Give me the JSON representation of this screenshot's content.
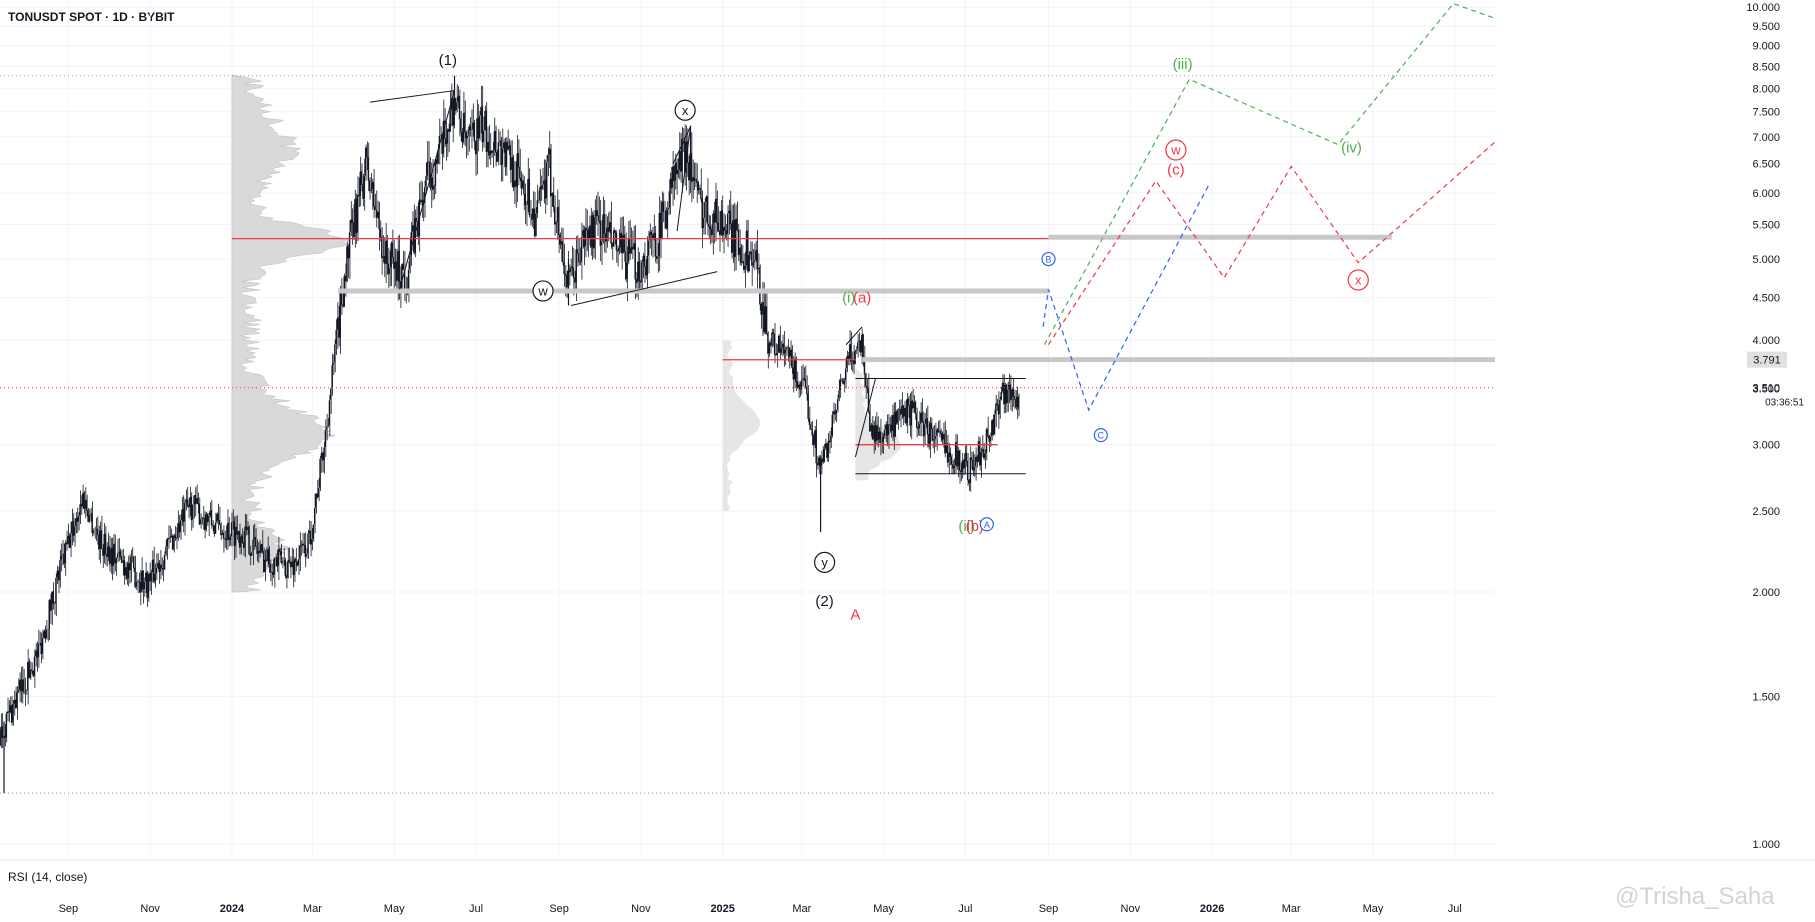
{
  "header": {
    "title": "TONUSDT SPOT · 1D · BYBIT"
  },
  "indicator": {
    "label": "RSI (14, close)"
  },
  "watermark": "@Trisha_Saha",
  "colors": {
    "black": "#131722",
    "red": "#f23645",
    "green": "#4caf50",
    "blue": "#2962ff",
    "zone": "#c8c8c8",
    "profile": "#d9d9d9"
  },
  "chart_data": {
    "type": "candlestick",
    "y_scale": "log",
    "ylim": [
      0.97,
      10.2
    ],
    "xlim": [
      "2023-07-12",
      "2026-07-31"
    ],
    "y_ticks": [
      "1.000",
      "1.500",
      "2.000",
      "2.500",
      "3.000",
      "3.500",
      "4.000",
      "4.500",
      "5.000",
      "5.500",
      "6.000",
      "6.500",
      "7.000",
      "7.500",
      "8.000",
      "8.500",
      "9.000",
      "9.500",
      "10.000"
    ],
    "x_ticks": [
      {
        "label": "Sep",
        "date": "2023-09-01",
        "bold": false
      },
      {
        "label": "Nov",
        "date": "2023-11-01",
        "bold": false
      },
      {
        "label": "2024",
        "date": "2024-01-01",
        "bold": true
      },
      {
        "label": "Mar",
        "date": "2024-03-01",
        "bold": false
      },
      {
        "label": "May",
        "date": "2024-05-01",
        "bold": false
      },
      {
        "label": "Jul",
        "date": "2024-07-01",
        "bold": false
      },
      {
        "label": "Sep",
        "date": "2024-09-01",
        "bold": false
      },
      {
        "label": "Nov",
        "date": "2024-11-01",
        "bold": false
      },
      {
        "label": "2025",
        "date": "2025-01-01",
        "bold": true
      },
      {
        "label": "Mar",
        "date": "2025-03-01",
        "bold": false
      },
      {
        "label": "May",
        "date": "2025-05-01",
        "bold": false
      },
      {
        "label": "Jul",
        "date": "2025-07-01",
        "bold": false
      },
      {
        "label": "Sep",
        "date": "2025-09-01",
        "bold": false
      },
      {
        "label": "Nov",
        "date": "2025-11-01",
        "bold": false
      },
      {
        "label": "2026",
        "date": "2026-01-01",
        "bold": true
      },
      {
        "label": "Mar",
        "date": "2026-03-01",
        "bold": false
      },
      {
        "label": "May",
        "date": "2026-05-01",
        "bold": false
      },
      {
        "label": "Jul",
        "date": "2026-07-01",
        "bold": false
      }
    ],
    "price_path": [
      [
        "2023-07-12",
        1.35
      ],
      [
        "2023-08-10",
        1.7
      ],
      [
        "2023-08-25",
        2.1
      ],
      [
        "2023-09-12",
        2.6
      ],
      [
        "2023-09-25",
        2.3
      ],
      [
        "2023-10-15",
        2.15
      ],
      [
        "2023-10-30",
        2.05
      ],
      [
        "2023-11-20",
        2.35
      ],
      [
        "2023-12-01",
        2.55
      ],
      [
        "2023-12-20",
        2.4
      ],
      [
        "2024-01-10",
        2.35
      ],
      [
        "2024-01-25",
        2.2
      ],
      [
        "2024-02-15",
        2.15
      ],
      [
        "2024-02-28",
        2.3
      ],
      [
        "2024-03-10",
        3.0
      ],
      [
        "2024-03-25",
        4.8
      ],
      [
        "2024-04-10",
        6.5
      ],
      [
        "2024-04-25",
        5.0
      ],
      [
        "2024-05-10",
        4.8
      ],
      [
        "2024-05-25",
        6.2
      ],
      [
        "2024-06-05",
        6.7
      ],
      [
        "2024-06-15",
        7.8
      ],
      [
        "2024-06-25",
        6.8
      ],
      [
        "2024-07-05",
        7.2
      ],
      [
        "2024-07-20",
        6.8
      ],
      [
        "2024-08-05",
        6.2
      ],
      [
        "2024-08-15",
        5.6
      ],
      [
        "2024-08-25",
        6.4
      ],
      [
        "2024-09-08",
        4.6
      ],
      [
        "2024-09-20",
        5.3
      ],
      [
        "2024-10-01",
        5.5
      ],
      [
        "2024-10-15",
        5.1
      ],
      [
        "2024-11-01",
        4.9
      ],
      [
        "2024-11-15",
        5.4
      ],
      [
        "2024-11-25",
        6.2
      ],
      [
        "2024-12-05",
        6.8
      ],
      [
        "2024-12-15",
        5.8
      ],
      [
        "2024-12-30",
        5.6
      ],
      [
        "2025-01-10",
        5.3
      ],
      [
        "2025-01-25",
        5.0
      ],
      [
        "2025-02-05",
        4.0
      ],
      [
        "2025-02-20",
        3.8
      ],
      [
        "2025-03-05",
        3.4
      ],
      [
        "2025-03-15",
        2.8
      ],
      [
        "2025-03-25",
        3.2
      ],
      [
        "2025-04-05",
        3.8
      ],
      [
        "2025-04-15",
        4.0
      ],
      [
        "2025-04-22",
        3.1
      ],
      [
        "2025-05-05",
        3.1
      ],
      [
        "2025-05-20",
        3.3
      ],
      [
        "2025-06-05",
        3.1
      ],
      [
        "2025-06-20",
        2.95
      ],
      [
        "2025-07-05",
        2.8
      ],
      [
        "2025-07-20",
        3.1
      ],
      [
        "2025-07-28",
        3.5
      ],
      [
        "2025-08-10",
        3.4
      ]
    ],
    "range_extremes": [
      [
        "2024-06-15",
        8.28,
        7.6
      ],
      [
        "2024-12-08",
        7.22,
        6.6
      ],
      [
        "2024-09-08",
        5.0,
        4.4
      ],
      [
        "2025-03-15",
        2.9,
        2.36
      ],
      [
        "2023-07-15",
        1.4,
        1.15
      ]
    ],
    "horizontal_lines": [
      {
        "from": "2024-01-01",
        "to": "2025-09-01",
        "price": 5.29,
        "color": "red"
      },
      {
        "from": "2024-03-20",
        "to": "2025-09-01",
        "price": 4.58,
        "color": "zone"
      },
      {
        "from": "2025-09-01",
        "to": "2026-05-15",
        "price": 5.31,
        "color": "zone"
      },
      {
        "from": "2025-04-15",
        "to": "2026-08-31",
        "price": 3.791,
        "color": "zone"
      },
      {
        "from": "2025-04-10",
        "to": "2025-08-15",
        "price": 3.6,
        "color": "black"
      },
      {
        "from": "2025-04-10",
        "to": "2025-08-15",
        "price": 2.77,
        "color": "black"
      },
      {
        "from": "2025-01-01",
        "to": "2025-04-10",
        "price": 3.79,
        "color": "red"
      },
      {
        "from": "2025-04-10",
        "to": "2025-07-25",
        "price": 3.0,
        "color": "red"
      }
    ],
    "dotted_levels": [
      8.28,
      3.51,
      1.15
    ],
    "trendlines": [
      [
        "2024-04-13",
        7.7,
        "2024-06-15",
        7.95
      ],
      [
        "2024-05-05",
        4.6,
        "2024-06-15",
        7.95
      ],
      [
        "2024-09-10",
        4.4,
        "2024-12-28",
        4.83
      ],
      [
        "2024-11-25",
        6.5,
        "2024-12-08",
        7.2
      ],
      [
        "2024-11-28",
        5.4,
        "2024-12-08",
        7.2
      ],
      [
        "2025-04-03",
        3.95,
        "2025-04-15",
        4.15
      ],
      [
        "2025-04-25",
        3.6,
        "2025-04-10",
        2.9
      ]
    ],
    "value_labels": {
      "last": "3.791",
      "countdown": "03:36:51",
      "price_3_510": "3.510"
    },
    "projections": [
      {
        "color": "green",
        "points": [
          [
            "2025-08-29",
            3.95
          ],
          [
            "2025-12-15",
            8.2
          ],
          [
            "2026-04-05",
            6.85
          ],
          [
            "2026-06-30",
            10.1
          ],
          [
            "2026-07-31",
            9.7
          ]
        ]
      },
      {
        "color": "red",
        "points": [
          [
            "2025-09-01",
            3.95
          ],
          [
            "2025-11-20",
            6.2
          ],
          [
            "2026-01-10",
            4.75
          ],
          [
            "2026-03-01",
            6.45
          ],
          [
            "2026-04-20",
            4.95
          ],
          [
            "2026-07-31",
            6.9
          ]
        ]
      },
      {
        "color": "blue",
        "points": [
          [
            "2025-08-28",
            4.15
          ],
          [
            "2025-09-01",
            4.6
          ],
          [
            "2025-10-01",
            3.3
          ],
          [
            "2025-12-30",
            6.15
          ]
        ]
      }
    ],
    "wave_labels": [
      {
        "text": "(1)",
        "date": "2024-06-10",
        "price": 8.65,
        "color": "black",
        "circled": false
      },
      {
        "text": "(2)",
        "date": "2025-03-18",
        "price": 1.95,
        "color": "black",
        "circled": false
      },
      {
        "text": "w",
        "date": "2024-08-20",
        "price": 4.58,
        "color": "black",
        "circled": true
      },
      {
        "text": "x",
        "date": "2024-12-04",
        "price": 7.53,
        "color": "black",
        "circled": true
      },
      {
        "text": "y",
        "date": "2025-03-18",
        "price": 2.17,
        "color": "black",
        "circled": true
      },
      {
        "text": "(i)",
        "date": "2025-04-05",
        "price": 4.5,
        "color": "green",
        "circled": false
      },
      {
        "text": "(a)",
        "date": "2025-04-15",
        "price": 4.5,
        "color": "red",
        "circled": false
      },
      {
        "text": "A",
        "date": "2025-04-10",
        "price": 1.88,
        "color": "red",
        "circled": false
      },
      {
        "text": "(ii)",
        "date": "2025-07-02",
        "price": 2.4,
        "color": "green",
        "circled": false
      },
      {
        "text": "(b)",
        "date": "2025-07-08",
        "price": 2.4,
        "color": "red",
        "circled": false
      },
      {
        "text": "A",
        "date": "2025-07-17",
        "price": 2.41,
        "color": "blue",
        "circled": true
      },
      {
        "text": "B",
        "date": "2025-09-01",
        "price": 5.0,
        "color": "blue",
        "circled": true
      },
      {
        "text": "C",
        "date": "2025-10-10",
        "price": 3.08,
        "color": "blue",
        "circled": true
      },
      {
        "text": "(iii)",
        "date": "2025-12-10",
        "price": 8.55,
        "color": "green",
        "circled": false
      },
      {
        "text": "(iv)",
        "date": "2026-04-15",
        "price": 6.8,
        "color": "green",
        "circled": false
      },
      {
        "text": "w",
        "date": "2025-12-05",
        "price": 6.75,
        "color": "red",
        "circled": true
      },
      {
        "text": "(c)",
        "date": "2025-12-05",
        "price": 6.4,
        "color": "red",
        "circled": false
      },
      {
        "text": "x",
        "date": "2026-04-20",
        "price": 4.72,
        "color": "red",
        "circled": true
      }
    ]
  }
}
